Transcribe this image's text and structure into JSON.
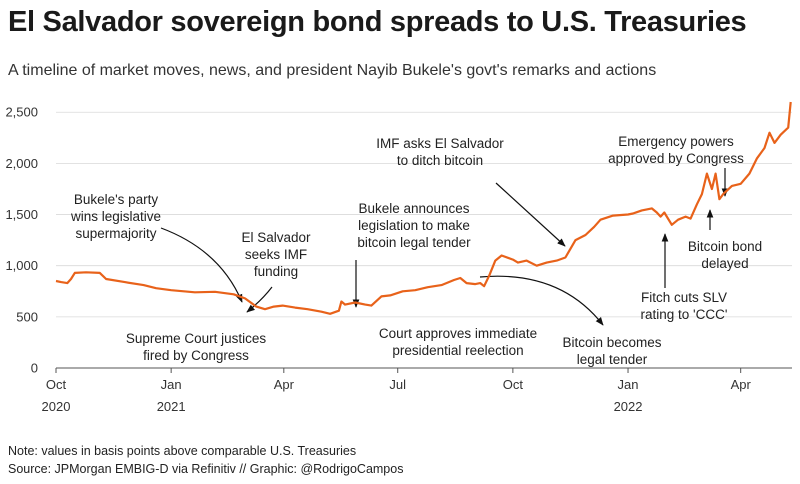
{
  "header": {
    "title": "El Salvador sovereign bond spreads to U.S. Treasuries",
    "subtitle": "A timeline of market moves, news, and president Nayib Bukele's govt's remarks and actions"
  },
  "footer": {
    "note": "Note: values in basis points above comparable U.S. Treasuries",
    "source": "Source: JPMorgan EMBIG-D via Refinitiv // Graphic: @RodrigoCampos"
  },
  "chart_data": {
    "type": "line",
    "title": "El Salvador sovereign bond spreads to U.S. Treasuries",
    "ylim": [
      0,
      2600
    ],
    "yticks": [
      0,
      500,
      1000,
      1500,
      2000,
      2500
    ],
    "ytick_labels": [
      "0",
      "500",
      "1,000",
      "1,500",
      "2,000",
      "2,500"
    ],
    "xticks": [
      {
        "date": "2020-10-01",
        "label": "Oct",
        "year": "2020"
      },
      {
        "date": "2021-01-01",
        "label": "Jan",
        "year": "2021"
      },
      {
        "date": "2021-04-01",
        "label": "Apr",
        "year": ""
      },
      {
        "date": "2021-07-01",
        "label": "Jul",
        "year": ""
      },
      {
        "date": "2021-10-01",
        "label": "Oct",
        "year": ""
      },
      {
        "date": "2022-01-01",
        "label": "Jan",
        "year": "2022"
      },
      {
        "date": "2022-04-01",
        "label": "Apr",
        "year": ""
      }
    ],
    "grid": true,
    "line_color": "#e8621a",
    "series": [
      {
        "points": [
          [
            "2020-10-01",
            850
          ],
          [
            "2020-10-05",
            840
          ],
          [
            "2020-10-10",
            830
          ],
          [
            "2020-10-13",
            870
          ],
          [
            "2020-10-16",
            930
          ],
          [
            "2020-10-25",
            935
          ],
          [
            "2020-11-05",
            930
          ],
          [
            "2020-11-10",
            870
          ],
          [
            "2020-11-25",
            840
          ],
          [
            "2020-12-10",
            810
          ],
          [
            "2020-12-20",
            780
          ],
          [
            "2021-01-01",
            760
          ],
          [
            "2021-01-20",
            740
          ],
          [
            "2021-02-05",
            745
          ],
          [
            "2021-02-20",
            720
          ],
          [
            "2021-03-01",
            680
          ],
          [
            "2021-03-10",
            600
          ],
          [
            "2021-03-17",
            575
          ],
          [
            "2021-03-24",
            600
          ],
          [
            "2021-03-31",
            610
          ],
          [
            "2021-04-10",
            590
          ],
          [
            "2021-04-20",
            575
          ],
          [
            "2021-05-01",
            550
          ],
          [
            "2021-05-08",
            530
          ],
          [
            "2021-05-15",
            560
          ],
          [
            "2021-05-17",
            650
          ],
          [
            "2021-05-20",
            620
          ],
          [
            "2021-05-28",
            640
          ],
          [
            "2021-06-05",
            620
          ],
          [
            "2021-06-10",
            610
          ],
          [
            "2021-06-18",
            700
          ],
          [
            "2021-06-25",
            710
          ],
          [
            "2021-07-05",
            750
          ],
          [
            "2021-07-15",
            760
          ],
          [
            "2021-07-25",
            790
          ],
          [
            "2021-08-05",
            810
          ],
          [
            "2021-08-15",
            860
          ],
          [
            "2021-08-20",
            880
          ],
          [
            "2021-08-25",
            830
          ],
          [
            "2021-09-01",
            820
          ],
          [
            "2021-09-05",
            830
          ],
          [
            "2021-09-08",
            800
          ],
          [
            "2021-09-12",
            900
          ],
          [
            "2021-09-17",
            1050
          ],
          [
            "2021-09-22",
            1100
          ],
          [
            "2021-10-01",
            1060
          ],
          [
            "2021-10-05",
            1030
          ],
          [
            "2021-10-12",
            1050
          ],
          [
            "2021-10-20",
            1000
          ],
          [
            "2021-10-28",
            1030
          ],
          [
            "2021-11-05",
            1050
          ],
          [
            "2021-11-12",
            1080
          ],
          [
            "2021-11-20",
            1250
          ],
          [
            "2021-11-28",
            1300
          ],
          [
            "2021-12-05",
            1380
          ],
          [
            "2021-12-10",
            1450
          ],
          [
            "2021-12-20",
            1490
          ],
          [
            "2022-01-01",
            1500
          ],
          [
            "2022-01-05",
            1510
          ],
          [
            "2022-01-12",
            1540
          ],
          [
            "2022-01-20",
            1560
          ],
          [
            "2022-01-24",
            1520
          ],
          [
            "2022-01-27",
            1480
          ],
          [
            "2022-01-30",
            1520
          ],
          [
            "2022-02-05",
            1400
          ],
          [
            "2022-02-10",
            1450
          ],
          [
            "2022-02-16",
            1480
          ],
          [
            "2022-02-20",
            1460
          ],
          [
            "2022-02-25",
            1600
          ],
          [
            "2022-03-01",
            1700
          ],
          [
            "2022-03-05",
            1900
          ],
          [
            "2022-03-09",
            1750
          ],
          [
            "2022-03-12",
            1900
          ],
          [
            "2022-03-15",
            1650
          ],
          [
            "2022-03-18",
            1700
          ],
          [
            "2022-03-25",
            1780
          ],
          [
            "2022-04-01",
            1800
          ],
          [
            "2022-04-08",
            1900
          ],
          [
            "2022-04-14",
            2050
          ],
          [
            "2022-04-20",
            2150
          ],
          [
            "2022-04-24",
            2300
          ],
          [
            "2022-04-28",
            2200
          ],
          [
            "2022-05-03",
            2280
          ],
          [
            "2022-05-09",
            2350
          ],
          [
            "2022-05-11",
            2600
          ]
        ]
      }
    ],
    "annotations": [
      {
        "id": "bukele-party",
        "lines": [
          "Bukele's party",
          "wins legislative",
          "supermajority"
        ]
      },
      {
        "id": "el-salvador-imf",
        "lines": [
          "El Salvador",
          "seeks IMF",
          "funding"
        ]
      },
      {
        "id": "supreme-court",
        "lines": [
          "Supreme Court justices",
          "fired by Congress"
        ]
      },
      {
        "id": "bukele-announces",
        "lines": [
          "Bukele announces",
          "legislation to make",
          "bitcoin legal tender"
        ]
      },
      {
        "id": "court-approves",
        "lines": [
          "Court approves immediate",
          "presidential reelection"
        ]
      },
      {
        "id": "imf-asks",
        "lines": [
          "IMF asks El Salvador",
          "to ditch bitcoin"
        ]
      },
      {
        "id": "bitcoin-legal",
        "lines": [
          "Bitcoin becomes",
          "legal tender"
        ]
      },
      {
        "id": "emergency-powers",
        "lines": [
          "Emergency powers",
          "approved by Congress"
        ]
      },
      {
        "id": "fitch-cuts",
        "lines": [
          "Fitch cuts SLV",
          "rating to 'CCC'"
        ]
      },
      {
        "id": "bitcoin-bond",
        "lines": [
          "Bitcoin bond",
          "delayed"
        ]
      }
    ]
  }
}
